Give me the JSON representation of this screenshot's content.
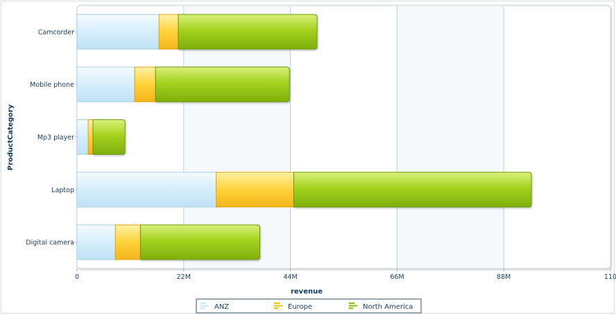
{
  "chart_data": {
    "type": "bar",
    "orientation": "horizontal",
    "stacked": true,
    "categories": [
      "Camcorder",
      "Mobile phone",
      "Mp3 player",
      "Laptop",
      "Digital camera"
    ],
    "series": [
      {
        "name": "ANZ",
        "values": [
          16.9,
          11.9,
          2.3,
          28.7,
          7.9
        ]
      },
      {
        "name": "Europe",
        "values": [
          4.0,
          4.3,
          1.0,
          16.0,
          5.2
        ]
      },
      {
        "name": "North America",
        "values": [
          28.6,
          27.6,
          6.6,
          49.0,
          24.6
        ]
      }
    ],
    "xlabel": "revenue",
    "ylabel": "ProductCategory",
    "xlim": [
      0,
      110
    ],
    "xticks": [
      "0",
      "22M",
      "44M",
      "66M",
      "88M",
      "110"
    ],
    "xtick_values": [
      0,
      22,
      44,
      66,
      88,
      110
    ],
    "legend_position": "bottom",
    "grid": true,
    "colors": {
      "ANZ": "#d8effb",
      "Europe": "#ffd740",
      "North America": "#9ccb1a",
      "gridline": "#b5d3e3",
      "band": "#f5f9fc",
      "tick_text": "#1a3d5c"
    }
  }
}
